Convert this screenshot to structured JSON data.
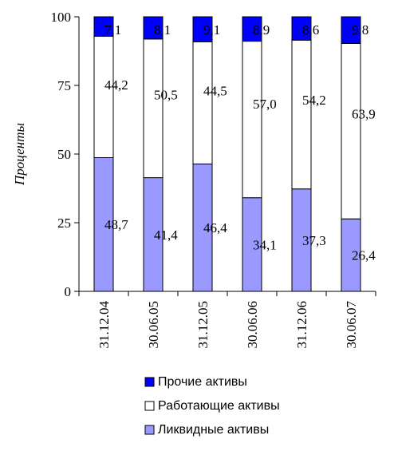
{
  "chart_data": {
    "type": "bar",
    "stacked": true,
    "ylabel": "Проценты",
    "ylim": [
      0,
      100
    ],
    "yticks": [
      "0",
      "25",
      "50",
      "75",
      "100"
    ],
    "categories": [
      "31.12.04",
      "30.06.05",
      "31.12.05",
      "30.06.06",
      "31.12.06",
      "30.06.07"
    ],
    "series": [
      {
        "name": "Ликвидные активы",
        "color": "#9999ff",
        "values": [
          48.7,
          41.4,
          46.4,
          34.1,
          37.3,
          26.4
        ],
        "labels": [
          "48,7",
          "41,4",
          "46,4",
          "34,1",
          "37,3",
          "26,4"
        ]
      },
      {
        "name": "Работающие активы",
        "color": "#ffffff",
        "values": [
          44.2,
          50.5,
          44.5,
          57.0,
          54.2,
          63.9
        ],
        "labels": [
          "44,2",
          "50,5",
          "44,5",
          "57,0",
          "54,2",
          "63,9"
        ]
      },
      {
        "name": "Прочие активы",
        "color": "#0000ff",
        "values": [
          7.1,
          8.1,
          9.1,
          8.9,
          8.6,
          9.8
        ],
        "labels": [
          "7,1",
          "8,1",
          "9,1",
          "8,9",
          "8,6",
          "9,8"
        ]
      }
    ],
    "legend": {
      "position": "bottom",
      "order": [
        "Прочие активы",
        "Работающие активы",
        "Ликвидные активы"
      ]
    },
    "grid": false
  }
}
